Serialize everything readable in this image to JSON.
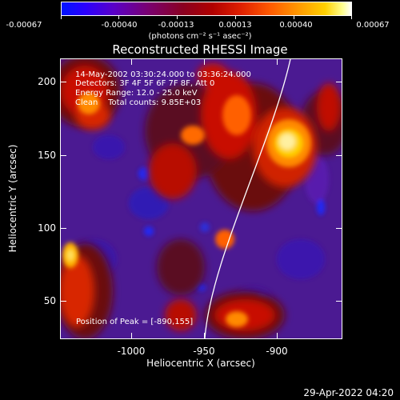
{
  "colorbar": {
    "labels": [
      "-0.00067",
      "-0.00040",
      "-0.00013",
      "0.00013",
      "0.00040",
      "0.00067"
    ],
    "units": "(photons cm⁻² s⁻¹ asec⁻²)"
  },
  "title": "Reconstructed RHESSI Image",
  "annotations": {
    "time_range": "14-May-2002 03:30:24.000 to 03:36:24.000",
    "detectors": "Detectors: 3F 4F 5F 6F 7F 8F, Att 0",
    "energy": "Energy Range: 12.0 - 25.0 keV",
    "clean": "Clean    Total counts: 9.85E+03",
    "peak": "Position of Peak = [-890,155]"
  },
  "axes": {
    "xlabel": "Heliocentric X (arcsec)",
    "ylabel": "Heliocentric Y (arcsec)",
    "xticks": [
      "-1000",
      "-950",
      "-900"
    ],
    "yticks": [
      "200",
      "150",
      "100",
      "50"
    ]
  },
  "timestamp": "29-Apr-2022 04:20",
  "colors": {
    "background": "#000000",
    "foreground": "#ffffff"
  }
}
